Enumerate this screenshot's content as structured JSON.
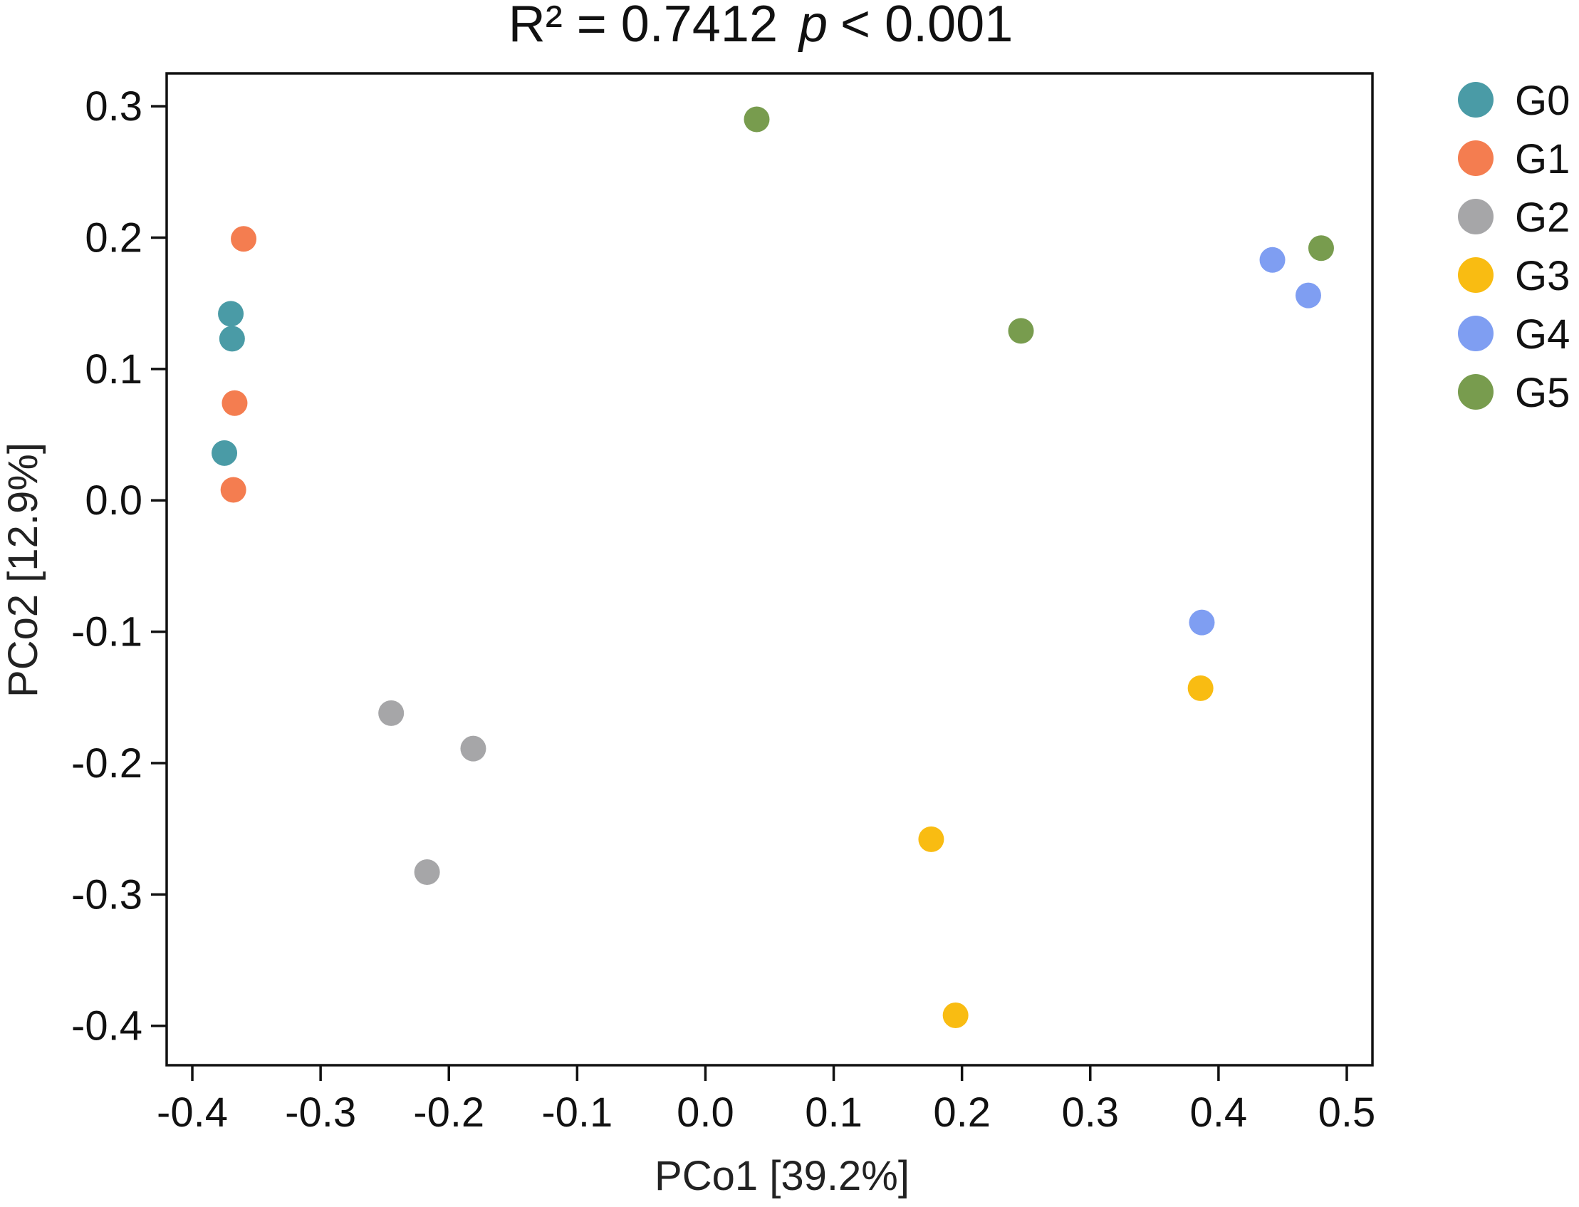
{
  "chart_data": {
    "type": "scatter",
    "title": "R² = 0.7412",
    "title_p_symbol": "p",
    "title_p_value": "< 0.001",
    "xlabel": "PCo1 [39.2%]",
    "ylabel": "PCo2 [12.9%]",
    "xlim": [
      -0.42,
      0.52
    ],
    "ylim": [
      -0.43,
      0.325
    ],
    "xticks": [
      -0.4,
      -0.3,
      -0.2,
      -0.1,
      0.0,
      0.1,
      0.2,
      0.3,
      0.4,
      0.5
    ],
    "xtick_labels": [
      "-0.4",
      "-0.3",
      "-0.2",
      "-0.1",
      "0.0",
      "0.1",
      "0.2",
      "0.3",
      "0.4",
      "0.5"
    ],
    "yticks": [
      0.3,
      0.2,
      0.1,
      0.0,
      -0.1,
      -0.2,
      -0.3,
      -0.4
    ],
    "ytick_labels": [
      "0.3",
      "0.2",
      "0.1",
      "0.0",
      "-0.1",
      "-0.2",
      "-0.3",
      "-0.4"
    ],
    "grid": false,
    "legend_position": "right",
    "series": [
      {
        "name": "G0",
        "color": "#4A9BA6",
        "points": [
          [
            -0.37,
            0.142
          ],
          [
            -0.369,
            0.123
          ],
          [
            -0.375,
            0.036
          ]
        ]
      },
      {
        "name": "G1",
        "color": "#F47D50",
        "points": [
          [
            -0.36,
            0.199
          ],
          [
            -0.367,
            0.074
          ],
          [
            -0.368,
            0.008
          ]
        ]
      },
      {
        "name": "G2",
        "color": "#A6A6A8",
        "points": [
          [
            -0.245,
            -0.162
          ],
          [
            -0.181,
            -0.189
          ],
          [
            -0.217,
            -0.283
          ]
        ]
      },
      {
        "name": "G3",
        "color": "#F9BC12",
        "points": [
          [
            0.176,
            -0.258
          ],
          [
            0.195,
            -0.392
          ],
          [
            0.386,
            -0.143
          ]
        ]
      },
      {
        "name": "G4",
        "color": "#7F9EF2",
        "points": [
          [
            0.442,
            0.183
          ],
          [
            0.47,
            0.156
          ],
          [
            0.387,
            -0.093
          ]
        ]
      },
      {
        "name": "G5",
        "color": "#789C4E",
        "points": [
          [
            0.04,
            0.29
          ],
          [
            0.246,
            0.129
          ],
          [
            0.48,
            0.192
          ]
        ]
      }
    ]
  }
}
